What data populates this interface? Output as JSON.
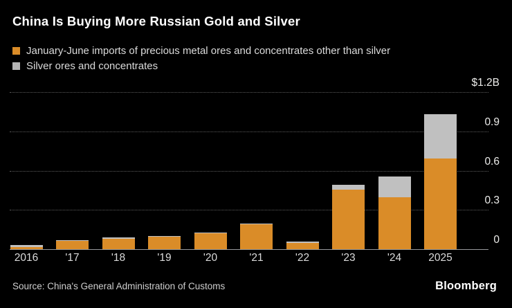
{
  "page": {
    "background": "#000000"
  },
  "header": {
    "title": "China Is Buying More Russian Gold and Silver",
    "legend": [
      {
        "label": "January-June imports of precious metal ores and concentrates other than silver",
        "color": "#DA8C28"
      },
      {
        "label": "Silver ores and concentrates",
        "color": "#B5B5B5"
      }
    ]
  },
  "chart_data": {
    "type": "bar",
    "stacked": true,
    "title": "China Is Buying More Russian Gold and Silver",
    "unit": "billion USD",
    "categories": [
      "2016",
      "'17",
      "'18",
      "'19",
      "'20",
      "'21",
      "'22",
      "'23",
      "'24",
      "2025"
    ],
    "series": [
      {
        "name": "January-June imports of precious metal ores and concentrates other than silver",
        "color": "#DA8C28",
        "values": [
          0.018,
          0.062,
          0.08,
          0.095,
          0.12,
          0.19,
          0.05,
          0.455,
          0.395,
          0.69
        ]
      },
      {
        "name": "Silver ores and concentrates",
        "color": "#C0C0C0",
        "values": [
          0.013,
          0.008,
          0.008,
          0.008,
          0.008,
          0.008,
          0.008,
          0.035,
          0.16,
          0.34
        ]
      }
    ],
    "xlabel": "",
    "ylabel": "",
    "ylim": [
      0,
      1.2
    ],
    "y_ticks": [
      {
        "value": 0,
        "label": "0"
      },
      {
        "value": 0.3,
        "label": "0.3"
      },
      {
        "value": 0.6,
        "label": "0.6"
      },
      {
        "value": 0.9,
        "label": "0.9"
      },
      {
        "value": 1.2,
        "label": "$1.2B"
      }
    ],
    "grid": "horizontal-dotted",
    "grid_color": "#5E5E5E",
    "baseline_color": "#97999B",
    "legend_position": "top-left",
    "axis_side": "right"
  },
  "footer": {
    "source": "Source: China's General Administration of Customs",
    "brand": "Bloomberg"
  }
}
